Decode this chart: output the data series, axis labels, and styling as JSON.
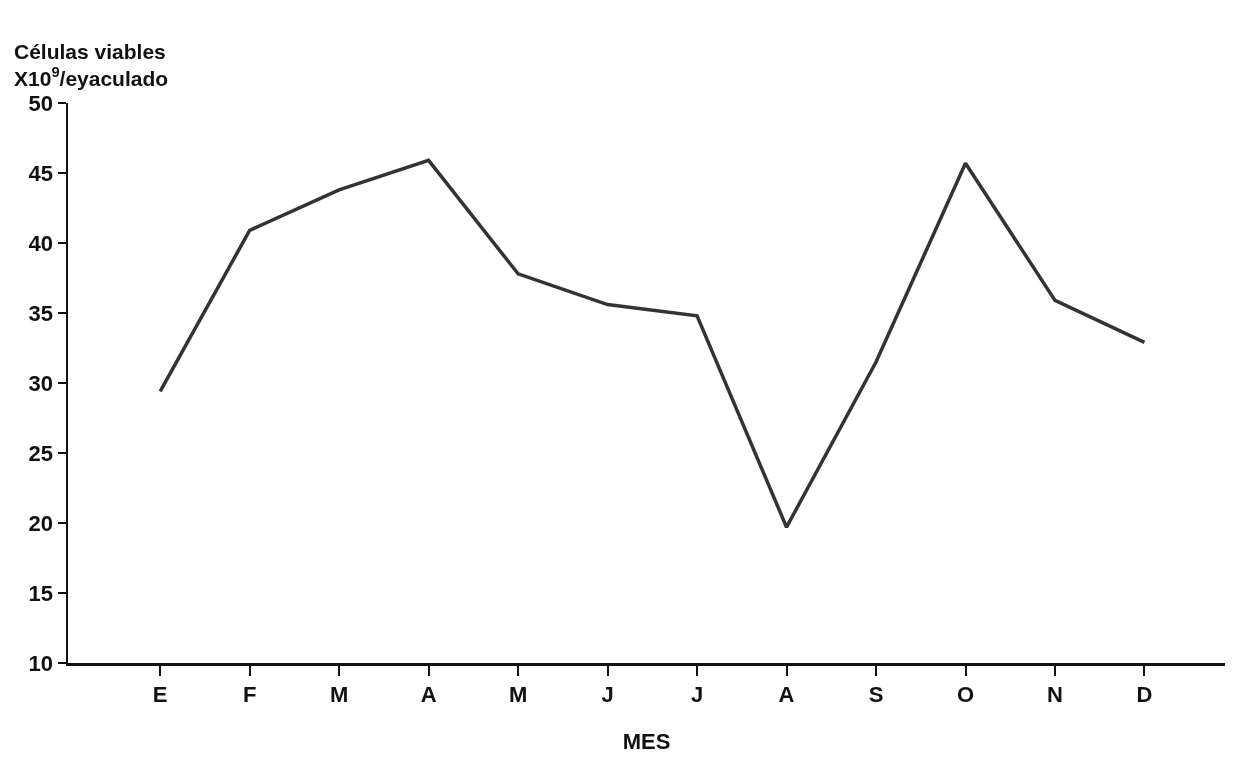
{
  "chart_data": {
    "type": "line",
    "ylabel": "Células viables\nX10$^{9}$/eyaculado",
    "xlabel": "MES",
    "categories": [
      "E",
      "F",
      "M",
      "A",
      "M",
      "J",
      "J",
      "A",
      "S",
      "O",
      "N",
      "D"
    ],
    "series": [
      {
        "color": "#333333",
        "values": [
          29.4,
          40.9,
          43.8,
          45.9,
          37.8,
          35.6,
          34.8,
          19.7,
          31.5,
          45.7,
          35.9,
          32.9
        ]
      }
    ],
    "ylim": [
      10,
      50
    ],
    "yticks": [
      10,
      15,
      20,
      25,
      30,
      35,
      40,
      45,
      50
    ],
    "grid": false,
    "marker": "none",
    "line_style": "solid"
  }
}
